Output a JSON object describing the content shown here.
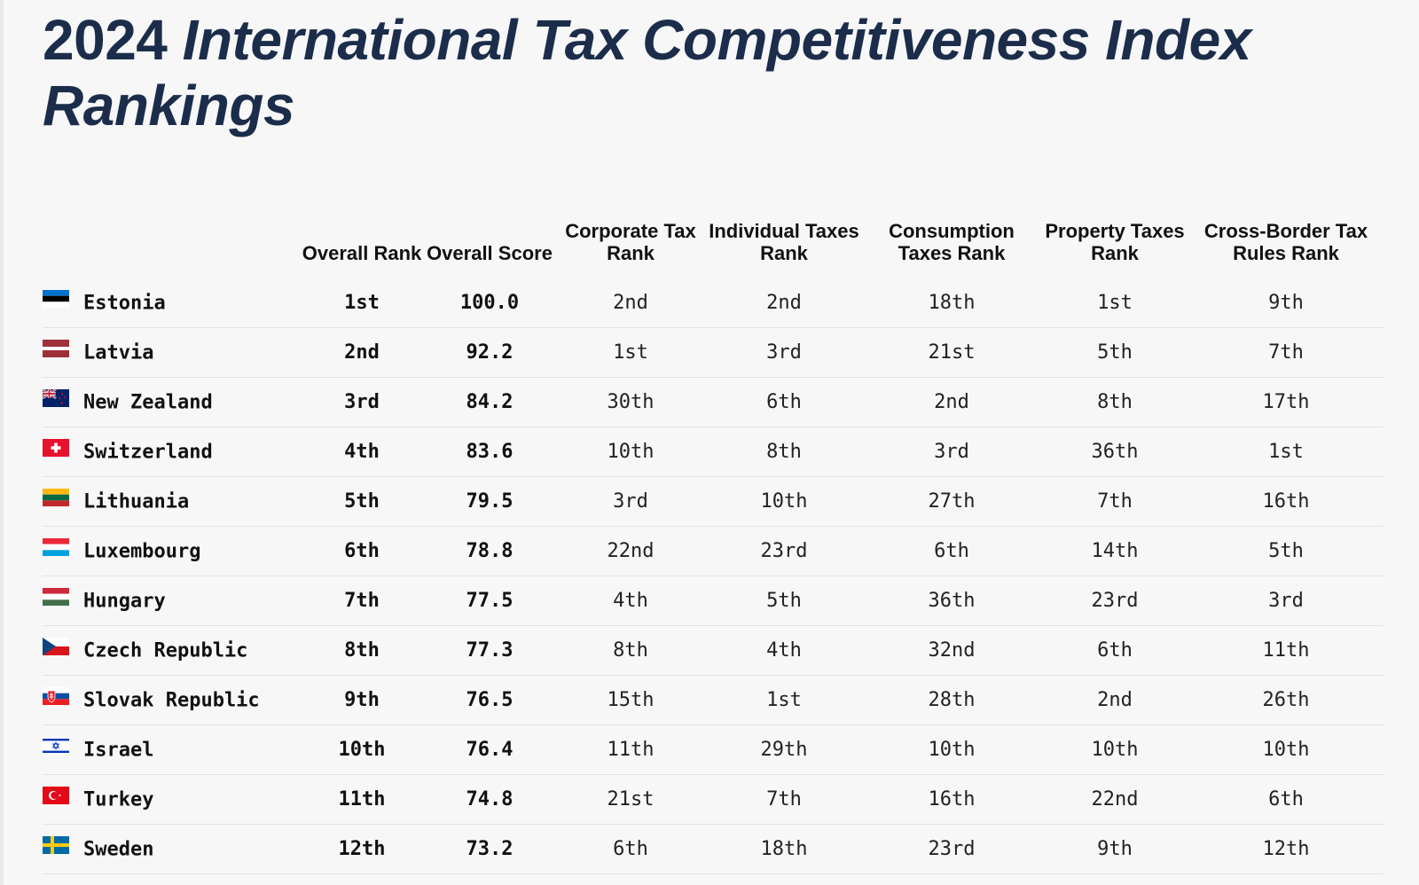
{
  "title": {
    "year": "2024",
    "rest": "International Tax Competitiveness Index Rankings"
  },
  "colors": {
    "title": "#1b2d4a",
    "background": "#f7f7f7",
    "row_divider": "#e2e2e2"
  },
  "chart_data": {
    "type": "table",
    "title": "2024 International Tax Competitiveness Index Rankings",
    "columns": [
      {
        "key": "country",
        "label": ""
      },
      {
        "key": "overall_rank",
        "label": "Overall Rank"
      },
      {
        "key": "overall_score",
        "label": "Overall Score"
      },
      {
        "key": "corporate",
        "label": "Corporate Tax Rank"
      },
      {
        "key": "individual",
        "label": "Individual Taxes Rank"
      },
      {
        "key": "consumption",
        "label": "Consumption Taxes Rank"
      },
      {
        "key": "property",
        "label": "Property Taxes Rank"
      },
      {
        "key": "crossborder",
        "label": "Cross-Border Tax Rules Rank"
      }
    ],
    "rows": [
      {
        "flag": "estonia-flag",
        "country": "Estonia",
        "overall_rank": "1st",
        "overall_score": "100.0",
        "corporate": "2nd",
        "individual": "2nd",
        "consumption": "18th",
        "property": "1st",
        "crossborder": "9th"
      },
      {
        "flag": "latvia-flag",
        "country": "Latvia",
        "overall_rank": "2nd",
        "overall_score": "92.2",
        "corporate": "1st",
        "individual": "3rd",
        "consumption": "21st",
        "property": "5th",
        "crossborder": "7th"
      },
      {
        "flag": "new-zealand-flag",
        "country": "New Zealand",
        "overall_rank": "3rd",
        "overall_score": "84.2",
        "corporate": "30th",
        "individual": "6th",
        "consumption": "2nd",
        "property": "8th",
        "crossborder": "17th"
      },
      {
        "flag": "switzerland-flag",
        "country": "Switzerland",
        "overall_rank": "4th",
        "overall_score": "83.6",
        "corporate": "10th",
        "individual": "8th",
        "consumption": "3rd",
        "property": "36th",
        "crossborder": "1st"
      },
      {
        "flag": "lithuania-flag",
        "country": "Lithuania",
        "overall_rank": "5th",
        "overall_score": "79.5",
        "corporate": "3rd",
        "individual": "10th",
        "consumption": "27th",
        "property": "7th",
        "crossborder": "16th"
      },
      {
        "flag": "luxembourg-flag",
        "country": "Luxembourg",
        "overall_rank": "6th",
        "overall_score": "78.8",
        "corporate": "22nd",
        "individual": "23rd",
        "consumption": "6th",
        "property": "14th",
        "crossborder": "5th"
      },
      {
        "flag": "hungary-flag",
        "country": "Hungary",
        "overall_rank": "7th",
        "overall_score": "77.5",
        "corporate": "4th",
        "individual": "5th",
        "consumption": "36th",
        "property": "23rd",
        "crossborder": "3rd"
      },
      {
        "flag": "czech-republic-flag",
        "country": "Czech Republic",
        "overall_rank": "8th",
        "overall_score": "77.3",
        "corporate": "8th",
        "individual": "4th",
        "consumption": "32nd",
        "property": "6th",
        "crossborder": "11th"
      },
      {
        "flag": "slovak-republic-flag",
        "country": "Slovak Republic",
        "overall_rank": "9th",
        "overall_score": "76.5",
        "corporate": "15th",
        "individual": "1st",
        "consumption": "28th",
        "property": "2nd",
        "crossborder": "26th"
      },
      {
        "flag": "israel-flag",
        "country": "Israel",
        "overall_rank": "10th",
        "overall_score": "76.4",
        "corporate": "11th",
        "individual": "29th",
        "consumption": "10th",
        "property": "10th",
        "crossborder": "10th"
      },
      {
        "flag": "turkey-flag",
        "country": "Turkey",
        "overall_rank": "11th",
        "overall_score": "74.8",
        "corporate": "21st",
        "individual": "7th",
        "consumption": "16th",
        "property": "22nd",
        "crossborder": "6th"
      },
      {
        "flag": "sweden-flag",
        "country": "Sweden",
        "overall_rank": "12th",
        "overall_score": "73.2",
        "corporate": "6th",
        "individual": "18th",
        "consumption": "23rd",
        "property": "9th",
        "crossborder": "12th"
      }
    ]
  }
}
